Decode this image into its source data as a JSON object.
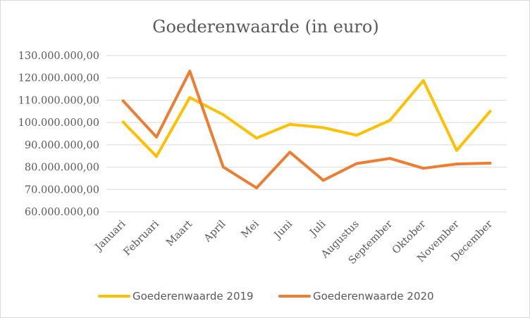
{
  "chart_data": {
    "type": "line",
    "title": "Goederenwaarde (in euro)",
    "xlabel": "",
    "ylabel": "",
    "categories": [
      "Januari",
      "Februari",
      "Maart",
      "April",
      "Mei",
      "Juni",
      "Juli",
      "Augustus",
      "September",
      "Oktober",
      "November",
      "December"
    ],
    "ylim": [
      60000000,
      130000000
    ],
    "yticks": [
      60000000,
      70000000,
      80000000,
      90000000,
      100000000,
      110000000,
      120000000,
      130000000
    ],
    "ytick_labels": [
      "60.000.000,00",
      "70.000.000,00",
      "80.000.000,00",
      "90.000.000,00",
      "100.000.000,00",
      "110.000.000,00",
      "120.000.000,00",
      "130.000.000,00"
    ],
    "grid": true,
    "legend_position": "bottom",
    "series": [
      {
        "name": "Goederenwaarde 2019",
        "color": "#FFC000",
        "values": [
          100200000,
          84800000,
          111200000,
          103500000,
          93000000,
          99200000,
          97700000,
          94300000,
          101000000,
          118800000,
          87500000,
          105000000
        ]
      },
      {
        "name": "Goederenwaarde 2020",
        "color": "#ED7D31",
        "values": [
          109700000,
          93500000,
          123000000,
          80100000,
          70700000,
          86700000,
          74100000,
          81600000,
          83900000,
          79500000,
          81400000,
          81800000
        ]
      }
    ]
  }
}
